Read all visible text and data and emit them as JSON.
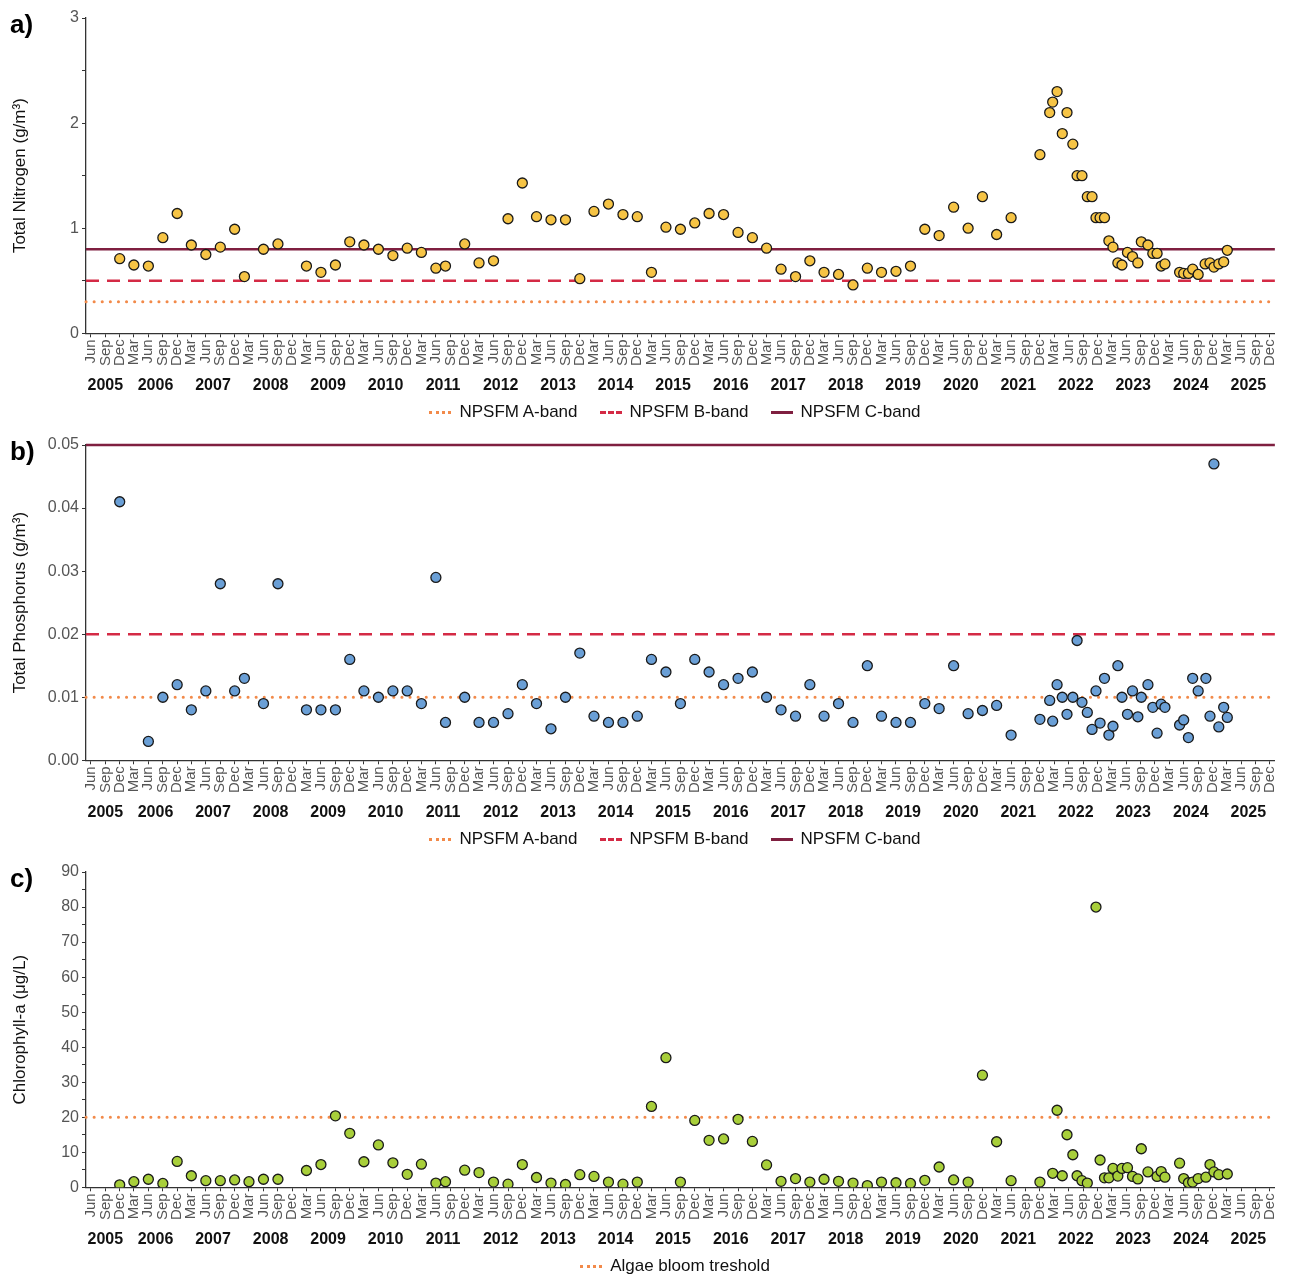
{
  "chart_data": [
    {
      "type": "scatter",
      "title": "a)",
      "ylabel": "Total Nitrogen (g/m³)",
      "marker": "circle",
      "legend": "bottom",
      "xlim": [
        "2005-05-01",
        "2026-01-01"
      ],
      "xticks": [
        {
          "value": "2005-06",
          "label": "Jun"
        },
        {
          "value": "2005-09",
          "label": "Sep"
        },
        {
          "value": "2005-12",
          "label": "Dec"
        },
        {
          "value": "2006-03",
          "label": "Mar"
        },
        {
          "value": "2006-06",
          "label": "Jun"
        },
        {
          "value": "2006-09",
          "label": "Sep"
        },
        {
          "value": "2006-12",
          "label": "Dec"
        },
        {
          "value": "2007-03",
          "label": "Mar"
        },
        {
          "value": "2007-06",
          "label": "Jun"
        },
        {
          "value": "2007-09",
          "label": "Sep"
        },
        {
          "value": "2007-12",
          "label": "Dec"
        },
        {
          "value": "2008-03",
          "label": "Mar"
        },
        {
          "value": "2008-06",
          "label": "Jun"
        },
        {
          "value": "2008-09",
          "label": "Sep"
        },
        {
          "value": "2008-12",
          "label": "Dec"
        },
        {
          "value": "2009-03",
          "label": "Mar"
        },
        {
          "value": "2009-06",
          "label": "Jun"
        },
        {
          "value": "2009-09",
          "label": "Sep"
        },
        {
          "value": "2009-12",
          "label": "Dec"
        },
        {
          "value": "2010-03",
          "label": "Mar"
        },
        {
          "value": "2010-06",
          "label": "Jun"
        },
        {
          "value": "2010-09",
          "label": "Sep"
        },
        {
          "value": "2010-12",
          "label": "Dec"
        },
        {
          "value": "2011-03",
          "label": "Mar"
        },
        {
          "value": "2011-06",
          "label": "Jun"
        },
        {
          "value": "2011-09",
          "label": "Sep"
        },
        {
          "value": "2011-12",
          "label": "Dec"
        },
        {
          "value": "2012-03",
          "label": "Mar"
        },
        {
          "value": "2012-06",
          "label": "Jun"
        },
        {
          "value": "2012-09",
          "label": "Sep"
        },
        {
          "value": "2012-12",
          "label": "Dec"
        },
        {
          "value": "2013-03",
          "label": "Mar"
        },
        {
          "value": "2013-06",
          "label": "Jun"
        },
        {
          "value": "2013-09",
          "label": "Sep"
        },
        {
          "value": "2013-12",
          "label": "Dec"
        },
        {
          "value": "2014-03",
          "label": "Mar"
        },
        {
          "value": "2014-06",
          "label": "Jun"
        },
        {
          "value": "2014-09",
          "label": "Sep"
        },
        {
          "value": "2014-12",
          "label": "Dec"
        },
        {
          "value": "2015-03",
          "label": "Mar"
        },
        {
          "value": "2015-06",
          "label": "Jun"
        },
        {
          "value": "2015-09",
          "label": "Sep"
        },
        {
          "value": "2015-12",
          "label": "Dec"
        },
        {
          "value": "2016-03",
          "label": "Mar"
        },
        {
          "value": "2016-06",
          "label": "Jun"
        },
        {
          "value": "2016-09",
          "label": "Sep"
        },
        {
          "value": "2016-12",
          "label": "Dec"
        },
        {
          "value": "2017-03",
          "label": "Mar"
        },
        {
          "value": "2017-06",
          "label": "Jun"
        },
        {
          "value": "2017-09",
          "label": "Sep"
        },
        {
          "value": "2017-12",
          "label": "Dec"
        },
        {
          "value": "2018-03",
          "label": "Mar"
        },
        {
          "value": "2018-06",
          "label": "Jun"
        },
        {
          "value": "2018-09",
          "label": "Sep"
        },
        {
          "value": "2018-12",
          "label": "Dec"
        },
        {
          "value": "2019-03",
          "label": "Mar"
        },
        {
          "value": "2019-06",
          "label": "Jun"
        },
        {
          "value": "2019-09",
          "label": "Sep"
        },
        {
          "value": "2019-12",
          "label": "Dec"
        },
        {
          "value": "2020-03",
          "label": "Mar"
        },
        {
          "value": "2020-06",
          "label": "Jun"
        },
        {
          "value": "2020-09",
          "label": "Sep"
        },
        {
          "value": "2020-12",
          "label": "Dec"
        },
        {
          "value": "2021-03",
          "label": "Mar"
        },
        {
          "value": "2021-06",
          "label": "Jun"
        },
        {
          "value": "2021-09",
          "label": "Sep"
        },
        {
          "value": "2021-12",
          "label": "Dec"
        },
        {
          "value": "2022-03",
          "label": "Mar"
        },
        {
          "value": "2022-06",
          "label": "Jun"
        },
        {
          "value": "2022-09",
          "label": "Sep"
        },
        {
          "value": "2022-12",
          "label": "Dec"
        },
        {
          "value": "2023-03",
          "label": "Mar"
        },
        {
          "value": "2023-06",
          "label": "Jun"
        },
        {
          "value": "2023-09",
          "label": "Sep"
        },
        {
          "value": "2023-12",
          "label": "Dec"
        },
        {
          "value": "2024-03",
          "label": "Mar"
        },
        {
          "value": "2024-06",
          "label": "Jun"
        },
        {
          "value": "2024-09",
          "label": "Sep"
        },
        {
          "value": "2024-12",
          "label": "Dec"
        },
        {
          "value": "2025-03",
          "label": "Mar"
        },
        {
          "value": "2025-06",
          "label": "Jun"
        },
        {
          "value": "2025-09",
          "label": "Sep"
        },
        {
          "value": "2025-12",
          "label": "Dec"
        }
      ],
      "ylim": [
        0,
        3
      ],
      "yticks": [
        0,
        {
          "value": 0.5,
          "label": null
        },
        1,
        {
          "value": 1.5,
          "label": null
        },
        2,
        {
          "value": 2.5,
          "label": null
        },
        3
      ],
      "annotations": [
        "2005",
        "2006",
        "2007",
        "2008",
        "2009",
        "2010",
        "2011",
        "2012",
        "2013",
        "2014",
        "2015",
        "2016",
        "2017",
        "2018",
        "2019",
        "2020",
        "2021",
        "2022",
        "2023",
        "2024",
        "2025"
      ],
      "ref_lines": [
        {
          "axis": "y",
          "value": 0.3,
          "label": "NPSFM A-band",
          "color": "#f28a4a",
          "line_style": "dotted"
        },
        {
          "axis": "y",
          "value": 0.5,
          "label": "NPSFM B-band",
          "color": "#d42a45",
          "line_style": "dashed"
        },
        {
          "axis": "y",
          "value": 0.8,
          "label": "NPSFM C-band",
          "color": "#7f1f40",
          "line_style": "solid"
        }
      ],
      "series": [
        {
          "color": "#f6c445",
          "x": [
            "2005-12",
            "2006-03",
            "2006-06",
            "2006-09",
            "2006-12",
            "2007-03",
            "2007-06",
            "2007-09",
            "2007-12",
            "2008-02",
            "2008-06",
            "2008-09",
            "2009-03",
            "2009-06",
            "2009-09",
            "2009-12",
            "2010-03",
            "2010-06",
            "2010-09",
            "2010-12",
            "2011-03",
            "2011-06",
            "2011-08",
            "2011-12",
            "2012-03",
            "2012-06",
            "2012-09",
            "2012-12",
            "2013-03",
            "2013-06",
            "2013-09",
            "2013-12",
            "2014-03",
            "2014-06",
            "2014-09",
            "2014-12",
            "2015-03",
            "2015-06",
            "2015-09",
            "2015-12",
            "2016-03",
            "2016-06",
            "2016-09",
            "2016-12",
            "2017-03",
            "2017-06",
            "2017-09",
            "2017-12",
            "2018-03",
            "2018-06",
            "2018-09",
            "2018-12",
            "2019-03",
            "2019-06",
            "2019-09",
            "2019-12",
            "2020-03",
            "2020-06",
            "2020-09",
            "2020-12",
            "2021-03",
            "2021-06",
            "2021-12",
            "2022-02-01",
            "2022-02-20",
            "2022-03-20",
            "2022-04-22",
            "2022-05-22",
            "2022-06-28",
            "2022-07-25",
            "2022-08-25",
            "2022-09-28",
            "2022-10-28",
            "2022-11-22",
            "2022-12-18",
            "2023-01-15",
            "2023-02-12",
            "2023-03-10",
            "2023-04-10",
            "2023-05-06",
            "2023-06-10",
            "2023-07-12",
            "2023-08-15",
            "2023-09-06",
            "2023-10-18",
            "2023-11-18",
            "2023-12-15",
            "2024-01-10",
            "2024-02-03",
            "2024-05-06",
            "2024-06-01",
            "2024-07-01",
            "2024-07-28",
            "2024-09-01",
            "2024-10-15",
            "2024-11-15",
            "2024-12-10",
            "2025-01-10",
            "2025-02-10",
            "2025-03-05"
          ],
          "values": [
            0.71,
            0.65,
            0.64,
            0.91,
            1.14,
            0.84,
            0.75,
            0.82,
            0.99,
            0.54,
            0.8,
            0.85,
            0.64,
            0.58,
            0.65,
            0.87,
            0.84,
            0.8,
            0.74,
            0.81,
            0.77,
            0.62,
            0.64,
            0.85,
            0.67,
            0.69,
            1.09,
            1.43,
            1.11,
            1.08,
            1.08,
            0.52,
            1.16,
            1.23,
            1.13,
            1.11,
            0.58,
            1.01,
            0.99,
            1.05,
            1.14,
            1.13,
            0.96,
            0.91,
            0.81,
            0.61,
            0.54,
            0.69,
            0.58,
            0.56,
            0.46,
            0.62,
            0.58,
            0.59,
            0.64,
            0.99,
            0.93,
            1.2,
            1.0,
            1.3,
            0.94,
            1.1,
            1.7,
            2.1,
            2.2,
            2.3,
            1.9,
            2.1,
            1.8,
            1.5,
            1.5,
            1.3,
            1.3,
            1.1,
            1.1,
            1.1,
            0.88,
            0.82,
            0.67,
            0.65,
            0.77,
            0.73,
            0.67,
            0.87,
            0.84,
            0.76,
            0.76,
            0.64,
            0.66,
            0.58,
            0.57,
            0.57,
            0.61,
            0.56,
            0.66,
            0.67,
            0.63,
            0.66,
            0.68,
            0.79
          ]
        }
      ]
    },
    {
      "type": "scatter",
      "title": "b)",
      "ylabel": "Total Phosphorus (g/m³)",
      "marker": "circle",
      "legend": "bottom",
      "xlim": [
        "2005-05-01",
        "2026-01-01"
      ],
      "xticks": [
        {
          "value": "2005-06",
          "label": "Jun"
        },
        {
          "value": "2005-09",
          "label": "Sep"
        },
        {
          "value": "2005-12",
          "label": "Dec"
        },
        {
          "value": "2006-03",
          "label": "Mar"
        },
        {
          "value": "2006-06",
          "label": "Jun"
        },
        {
          "value": "2006-09",
          "label": "Sep"
        },
        {
          "value": "2006-12",
          "label": "Dec"
        },
        {
          "value": "2007-03",
          "label": "Mar"
        },
        {
          "value": "2007-06",
          "label": "Jun"
        },
        {
          "value": "2007-09",
          "label": "Sep"
        },
        {
          "value": "2007-12",
          "label": "Dec"
        },
        {
          "value": "2008-03",
          "label": "Mar"
        },
        {
          "value": "2008-06",
          "label": "Jun"
        },
        {
          "value": "2008-09",
          "label": "Sep"
        },
        {
          "value": "2008-12",
          "label": "Dec"
        },
        {
          "value": "2009-03",
          "label": "Mar"
        },
        {
          "value": "2009-06",
          "label": "Jun"
        },
        {
          "value": "2009-09",
          "label": "Sep"
        },
        {
          "value": "2009-12",
          "label": "Dec"
        },
        {
          "value": "2010-03",
          "label": "Mar"
        },
        {
          "value": "2010-06",
          "label": "Jun"
        },
        {
          "value": "2010-09",
          "label": "Sep"
        },
        {
          "value": "2010-12",
          "label": "Dec"
        },
        {
          "value": "2011-03",
          "label": "Mar"
        },
        {
          "value": "2011-06",
          "label": "Jun"
        },
        {
          "value": "2011-09",
          "label": "Sep"
        },
        {
          "value": "2011-12",
          "label": "Dec"
        },
        {
          "value": "2012-03",
          "label": "Mar"
        },
        {
          "value": "2012-06",
          "label": "Jun"
        },
        {
          "value": "2012-09",
          "label": "Sep"
        },
        {
          "value": "2012-12",
          "label": "Dec"
        },
        {
          "value": "2013-03",
          "label": "Mar"
        },
        {
          "value": "2013-06",
          "label": "Jun"
        },
        {
          "value": "2013-09",
          "label": "Sep"
        },
        {
          "value": "2013-12",
          "label": "Dec"
        },
        {
          "value": "2014-03",
          "label": "Mar"
        },
        {
          "value": "2014-06",
          "label": "Jun"
        },
        {
          "value": "2014-09",
          "label": "Sep"
        },
        {
          "value": "2014-12",
          "label": "Dec"
        },
        {
          "value": "2015-03",
          "label": "Mar"
        },
        {
          "value": "2015-06",
          "label": "Jun"
        },
        {
          "value": "2015-09",
          "label": "Sep"
        },
        {
          "value": "2015-12",
          "label": "Dec"
        },
        {
          "value": "2016-03",
          "label": "Mar"
        },
        {
          "value": "2016-06",
          "label": "Jun"
        },
        {
          "value": "2016-09",
          "label": "Sep"
        },
        {
          "value": "2016-12",
          "label": "Dec"
        },
        {
          "value": "2017-03",
          "label": "Mar"
        },
        {
          "value": "2017-06",
          "label": "Jun"
        },
        {
          "value": "2017-09",
          "label": "Sep"
        },
        {
          "value": "2017-12",
          "label": "Dec"
        },
        {
          "value": "2018-03",
          "label": "Mar"
        },
        {
          "value": "2018-06",
          "label": "Jun"
        },
        {
          "value": "2018-09",
          "label": "Sep"
        },
        {
          "value": "2018-12",
          "label": "Dec"
        },
        {
          "value": "2019-03",
          "label": "Mar"
        },
        {
          "value": "2019-06",
          "label": "Jun"
        },
        {
          "value": "2019-09",
          "label": "Sep"
        },
        {
          "value": "2019-12",
          "label": "Dec"
        },
        {
          "value": "2020-03",
          "label": "Mar"
        },
        {
          "value": "2020-06",
          "label": "Jun"
        },
        {
          "value": "2020-09",
          "label": "Sep"
        },
        {
          "value": "2020-12",
          "label": "Dec"
        },
        {
          "value": "2021-03",
          "label": "Mar"
        },
        {
          "value": "2021-06",
          "label": "Jun"
        },
        {
          "value": "2021-09",
          "label": "Sep"
        },
        {
          "value": "2021-12",
          "label": "Dec"
        },
        {
          "value": "2022-03",
          "label": "Mar"
        },
        {
          "value": "2022-06",
          "label": "Jun"
        },
        {
          "value": "2022-09",
          "label": "Sep"
        },
        {
          "value": "2022-12",
          "label": "Dec"
        },
        {
          "value": "2023-03",
          "label": "Mar"
        },
        {
          "value": "2023-06",
          "label": "Jun"
        },
        {
          "value": "2023-09",
          "label": "Sep"
        },
        {
          "value": "2023-12",
          "label": "Dec"
        },
        {
          "value": "2024-03",
          "label": "Mar"
        },
        {
          "value": "2024-06",
          "label": "Jun"
        },
        {
          "value": "2024-09",
          "label": "Sep"
        },
        {
          "value": "2024-12",
          "label": "Dec"
        },
        {
          "value": "2025-03",
          "label": "Mar"
        },
        {
          "value": "2025-06",
          "label": "Jun"
        },
        {
          "value": "2025-09",
          "label": "Sep"
        },
        {
          "value": "2025-12",
          "label": "Dec"
        }
      ],
      "ylim": [
        0,
        0.05
      ],
      "yticks": [
        {
          "value": 0,
          "label": "0.00"
        },
        {
          "value": 0.01,
          "label": "0.01"
        },
        {
          "value": 0.02,
          "label": "0.02"
        },
        {
          "value": 0.03,
          "label": "0.03"
        },
        {
          "value": 0.04,
          "label": "0.04"
        },
        {
          "value": 0.05,
          "label": "0.05"
        }
      ],
      "ref_lines": [
        {
          "axis": "y",
          "value": 0.01,
          "label": "NPSFM A-band",
          "color": "#f28a4a",
          "line_style": "dotted"
        },
        {
          "axis": "y",
          "value": 0.02,
          "label": "NPSFM B-band",
          "color": "#d42a45",
          "line_style": "dashed"
        },
        {
          "axis": "y",
          "value": 0.05,
          "label": "NPSFM C-band",
          "color": "#7f1f40",
          "line_style": "solid"
        }
      ],
      "annotations": [
        "2005",
        "2006",
        "2007",
        "2008",
        "2009",
        "2010",
        "2011",
        "2012",
        "2013",
        "2014",
        "2015",
        "2016",
        "2017",
        "2018",
        "2019",
        "2020",
        "2021",
        "2022",
        "2023",
        "2024",
        "2025"
      ],
      "series": [
        {
          "color": "#6a9fd6",
          "x": [
            "2005-12",
            "2006-06",
            "2006-09",
            "2006-12",
            "2007-03",
            "2007-06",
            "2007-09",
            "2007-12",
            "2008-02",
            "2008-06",
            "2008-09",
            "2009-03",
            "2009-06",
            "2009-09",
            "2009-12",
            "2010-03",
            "2010-06",
            "2010-09",
            "2010-12",
            "2011-03",
            "2011-06",
            "2011-08",
            "2011-12",
            "2012-03",
            "2012-06",
            "2012-09",
            "2012-12",
            "2013-03",
            "2013-06",
            "2013-09",
            "2013-12",
            "2014-03",
            "2014-06",
            "2014-09",
            "2014-12",
            "2015-03",
            "2015-06",
            "2015-09",
            "2015-12",
            "2016-03",
            "2016-06",
            "2016-09",
            "2016-12",
            "2017-03",
            "2017-06",
            "2017-09",
            "2017-12",
            "2018-03",
            "2018-06",
            "2018-09",
            "2018-12",
            "2019-03",
            "2019-06",
            "2019-09",
            "2019-12",
            "2020-03",
            "2020-06",
            "2020-09",
            "2020-12",
            "2021-03",
            "2021-06",
            "2021-12",
            "2022-02-01",
            "2022-02-20",
            "2022-03-20",
            "2022-04-22",
            "2022-05-22",
            "2022-06-28",
            "2022-07-25",
            "2022-08-25",
            "2022-09-28",
            "2022-10-28",
            "2022-11-22",
            "2022-12-18",
            "2023-01-15",
            "2023-02-12",
            "2023-03-10",
            "2023-04-10",
            "2023-05-06",
            "2023-06-10",
            "2023-07-12",
            "2023-08-15",
            "2023-09-06",
            "2023-10-18",
            "2023-11-18",
            "2023-12-15",
            "2024-01-10",
            "2024-02-03",
            "2024-05-06",
            "2024-06-01",
            "2024-07-01",
            "2024-07-28",
            "2024-09-01",
            "2024-10-20",
            "2024-11-15",
            "2024-12-10",
            "2025-01-10",
            "2025-02-10",
            "2025-03-05"
          ],
          "values": [
            0.041,
            0.003,
            0.01,
            0.012,
            0.008,
            0.011,
            0.028,
            0.011,
            0.013,
            0.009,
            0.028,
            0.008,
            0.008,
            0.008,
            0.016,
            0.011,
            0.01,
            0.011,
            0.011,
            0.009,
            0.029,
            0.006,
            0.01,
            0.006,
            0.006,
            0.0074,
            0.012,
            0.009,
            0.005,
            0.01,
            0.017,
            0.007,
            0.006,
            0.006,
            0.007,
            0.016,
            0.014,
            0.009,
            0.016,
            0.014,
            0.012,
            0.013,
            0.014,
            0.01,
            0.008,
            0.007,
            0.012,
            0.007,
            0.009,
            0.006,
            0.015,
            0.007,
            0.006,
            0.006,
            0.009,
            0.0082,
            0.015,
            0.0074,
            0.0079,
            0.0087,
            0.004,
            0.0065,
            0.0095,
            0.0062,
            0.012,
            0.01,
            0.0073,
            0.01,
            0.019,
            0.0092,
            0.0076,
            0.0049,
            0.011,
            0.0059,
            0.013,
            0.004,
            0.0054,
            0.015,
            0.01,
            0.0073,
            0.011,
            0.0069,
            0.01,
            0.012,
            0.0084,
            0.0043,
            0.0089,
            0.0084,
            0.0056,
            0.0064,
            0.0036,
            0.013,
            0.011,
            0.013,
            0.007,
            0.047,
            0.0053,
            0.0084,
            0.0068
          ]
        }
      ]
    },
    {
      "type": "scatter",
      "title": "c)",
      "ylabel": "Chlorophyll-a (μg/L)",
      "marker": "circle",
      "legend": "bottom",
      "xlim": [
        "2005-05-01",
        "2026-01-01"
      ],
      "xticks": [
        {
          "value": "2005-06",
          "label": "Jun"
        },
        {
          "value": "2005-09",
          "label": "Sep"
        },
        {
          "value": "2005-12",
          "label": "Dec"
        },
        {
          "value": "2006-03",
          "label": "Mar"
        },
        {
          "value": "2006-06",
          "label": "Jun"
        },
        {
          "value": "2006-09",
          "label": "Sep"
        },
        {
          "value": "2006-12",
          "label": "Dec"
        },
        {
          "value": "2007-03",
          "label": "Mar"
        },
        {
          "value": "2007-06",
          "label": "Jun"
        },
        {
          "value": "2007-09",
          "label": "Sep"
        },
        {
          "value": "2007-12",
          "label": "Dec"
        },
        {
          "value": "2008-03",
          "label": "Mar"
        },
        {
          "value": "2008-06",
          "label": "Jun"
        },
        {
          "value": "2008-09",
          "label": "Sep"
        },
        {
          "value": "2008-12",
          "label": "Dec"
        },
        {
          "value": "2009-03",
          "label": "Mar"
        },
        {
          "value": "2009-06",
          "label": "Jun"
        },
        {
          "value": "2009-09",
          "label": "Sep"
        },
        {
          "value": "2009-12",
          "label": "Dec"
        },
        {
          "value": "2010-03",
          "label": "Mar"
        },
        {
          "value": "2010-06",
          "label": "Jun"
        },
        {
          "value": "2010-09",
          "label": "Sep"
        },
        {
          "value": "2010-12",
          "label": "Dec"
        },
        {
          "value": "2011-03",
          "label": "Mar"
        },
        {
          "value": "2011-06",
          "label": "Jun"
        },
        {
          "value": "2011-09",
          "label": "Sep"
        },
        {
          "value": "2011-12",
          "label": "Dec"
        },
        {
          "value": "2012-03",
          "label": "Mar"
        },
        {
          "value": "2012-06",
          "label": "Jun"
        },
        {
          "value": "2012-09",
          "label": "Sep"
        },
        {
          "value": "2012-12",
          "label": "Dec"
        },
        {
          "value": "2013-03",
          "label": "Mar"
        },
        {
          "value": "2013-06",
          "label": "Jun"
        },
        {
          "value": "2013-09",
          "label": "Sep"
        },
        {
          "value": "2013-12",
          "label": "Dec"
        },
        {
          "value": "2014-03",
          "label": "Mar"
        },
        {
          "value": "2014-06",
          "label": "Jun"
        },
        {
          "value": "2014-09",
          "label": "Sep"
        },
        {
          "value": "2014-12",
          "label": "Dec"
        },
        {
          "value": "2015-03",
          "label": "Mar"
        },
        {
          "value": "2015-06",
          "label": "Jun"
        },
        {
          "value": "2015-09",
          "label": "Sep"
        },
        {
          "value": "2015-12",
          "label": "Dec"
        },
        {
          "value": "2016-03",
          "label": "Mar"
        },
        {
          "value": "2016-06",
          "label": "Jun"
        },
        {
          "value": "2016-09",
          "label": "Sep"
        },
        {
          "value": "2016-12",
          "label": "Dec"
        },
        {
          "value": "2017-03",
          "label": "Mar"
        },
        {
          "value": "2017-06",
          "label": "Jun"
        },
        {
          "value": "2017-09",
          "label": "Sep"
        },
        {
          "value": "2017-12",
          "label": "Dec"
        },
        {
          "value": "2018-03",
          "label": "Mar"
        },
        {
          "value": "2018-06",
          "label": "Jun"
        },
        {
          "value": "2018-09",
          "label": "Sep"
        },
        {
          "value": "2018-12",
          "label": "Dec"
        },
        {
          "value": "2019-03",
          "label": "Mar"
        },
        {
          "value": "2019-06",
          "label": "Jun"
        },
        {
          "value": "2019-09",
          "label": "Sep"
        },
        {
          "value": "2019-12",
          "label": "Dec"
        },
        {
          "value": "2020-03",
          "label": "Mar"
        },
        {
          "value": "2020-06",
          "label": "Jun"
        },
        {
          "value": "2020-09",
          "label": "Sep"
        },
        {
          "value": "2020-12",
          "label": "Dec"
        },
        {
          "value": "2021-03",
          "label": "Mar"
        },
        {
          "value": "2021-06",
          "label": "Jun"
        },
        {
          "value": "2021-09",
          "label": "Sep"
        },
        {
          "value": "2021-12",
          "label": "Dec"
        },
        {
          "value": "2022-03",
          "label": "Mar"
        },
        {
          "value": "2022-06",
          "label": "Jun"
        },
        {
          "value": "2022-09",
          "label": "Sep"
        },
        {
          "value": "2022-12",
          "label": "Dec"
        },
        {
          "value": "2023-03",
          "label": "Mar"
        },
        {
          "value": "2023-06",
          "label": "Jun"
        },
        {
          "value": "2023-09",
          "label": "Sep"
        },
        {
          "value": "2023-12",
          "label": "Dec"
        },
        {
          "value": "2024-03",
          "label": "Mar"
        },
        {
          "value": "2024-06",
          "label": "Jun"
        },
        {
          "value": "2024-09",
          "label": "Sep"
        },
        {
          "value": "2024-12",
          "label": "Dec"
        },
        {
          "value": "2025-03",
          "label": "Mar"
        },
        {
          "value": "2025-06",
          "label": "Jun"
        },
        {
          "value": "2025-09",
          "label": "Sep"
        },
        {
          "value": "2025-12",
          "label": "Dec"
        }
      ],
      "ylim": [
        0,
        90
      ],
      "yticks": [
        0,
        {
          "value": 5,
          "label": null
        },
        10,
        {
          "value": 15,
          "label": null
        },
        20,
        {
          "value": 25,
          "label": null
        },
        30,
        {
          "value": 35,
          "label": null
        },
        40,
        {
          "value": 45,
          "label": null
        },
        50,
        {
          "value": 55,
          "label": null
        },
        60,
        {
          "value": 65,
          "label": null
        },
        70,
        {
          "value": 75,
          "label": null
        },
        80,
        {
          "value": 85,
          "label": null
        },
        90
      ],
      "ref_lines": [
        {
          "axis": "y",
          "value": 20,
          "label": "Algae bloom treshold",
          "color": "#f28a4a",
          "line_style": "dotted"
        }
      ],
      "annotations": [
        "2005",
        "2006",
        "2007",
        "2008",
        "2009",
        "2010",
        "2011",
        "2012",
        "2013",
        "2014",
        "2015",
        "2016",
        "2017",
        "2018",
        "2019",
        "2020",
        "2021",
        "2022",
        "2023",
        "2024",
        "2025"
      ],
      "series": [
        {
          "color": "#a8cf3a",
          "x": [
            "2005-12",
            "2006-03",
            "2006-06",
            "2006-09",
            "2006-12",
            "2007-03",
            "2007-06",
            "2007-09",
            "2007-12",
            "2008-03",
            "2008-06",
            "2008-09",
            "2009-03",
            "2009-06",
            "2009-09",
            "2009-12",
            "2010-03",
            "2010-06",
            "2010-09",
            "2010-12",
            "2011-03",
            "2011-06",
            "2011-08",
            "2011-12",
            "2012-03",
            "2012-06",
            "2012-09",
            "2012-12",
            "2013-03",
            "2013-06",
            "2013-09",
            "2013-12",
            "2014-03",
            "2014-06",
            "2014-09",
            "2014-12",
            "2015-03",
            "2015-06",
            "2015-09",
            "2015-12",
            "2016-03",
            "2016-06",
            "2016-09",
            "2016-12",
            "2017-03",
            "2017-06",
            "2017-09",
            "2017-12",
            "2018-03",
            "2018-06",
            "2018-09",
            "2018-12",
            "2019-03",
            "2019-06",
            "2019-09",
            "2019-12",
            "2020-03",
            "2020-06",
            "2020-09",
            "2020-12",
            "2021-03",
            "2021-06",
            "2021-12",
            "2022-02-20",
            "2022-03-20",
            "2022-04-22",
            "2022-05-22",
            "2022-06-28",
            "2022-07-25",
            "2022-08-25",
            "2022-09-28",
            "2022-11-22",
            "2022-12-18",
            "2023-01-15",
            "2023-02-12",
            "2023-03-10",
            "2023-04-10",
            "2023-05-06",
            "2023-06-10",
            "2023-07-12",
            "2023-08-15",
            "2023-09-06",
            "2023-10-18",
            "2023-12-15",
            "2024-01-10",
            "2024-02-03",
            "2024-05-06",
            "2024-06-01",
            "2024-07-01",
            "2024-07-28",
            "2024-09-01",
            "2024-10-20",
            "2024-11-15",
            "2024-12-10",
            "2025-01-10",
            "2025-03-05"
          ],
          "values": [
            0.7,
            1.6,
            2.3,
            1.1,
            7.4,
            3.3,
            1.9,
            1.9,
            2.1,
            1.6,
            2.3,
            2.3,
            4.8,
            6.5,
            20.4,
            15.4,
            7.3,
            12.1,
            7.0,
            3.7,
            6.6,
            1.2,
            1.6,
            4.9,
            4.2,
            1.5,
            0.9,
            6.5,
            2.8,
            1.2,
            0.8,
            3.6,
            3.1,
            1.5,
            0.9,
            1.5,
            23.1,
            37.0,
            1.5,
            19.1,
            13.4,
            13.8,
            19.4,
            13.1,
            6.4,
            1.7,
            2.5,
            1.5,
            2.3,
            1.7,
            1.2,
            0.5,
            1.5,
            1.3,
            1.1,
            2.0,
            5.8,
            2.1,
            1.5,
            32.0,
            13.0,
            1.9,
            1.5,
            4.0,
            22.0,
            3.3,
            15.0,
            9.3,
            3.3,
            1.9,
            1.2,
            80,
            7.8,
            2.7,
            2.7,
            5.4,
            3.2,
            5.4,
            5.6,
            3.1,
            2.4,
            11.0,
            4.4,
            3.1,
            4.5,
            2.9,
            6.9,
            2.5,
            1.3,
            1.5,
            2.5,
            2.9,
            6.5,
            4.4,
            3.6,
            3.8
          ]
        }
      ]
    }
  ]
}
